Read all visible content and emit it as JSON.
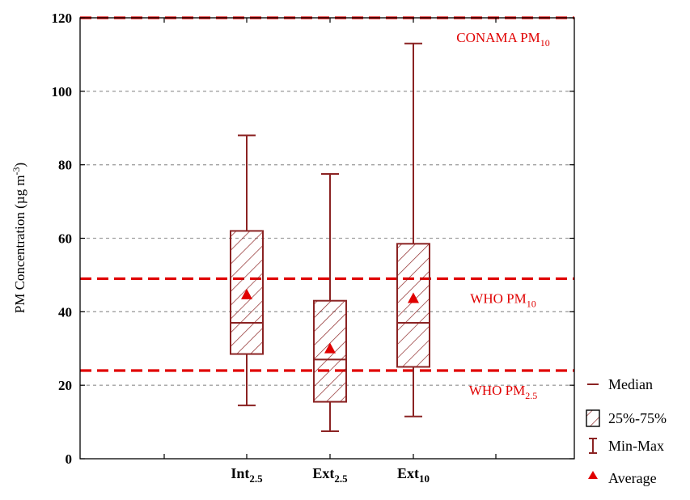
{
  "chart_data": {
    "type": "box",
    "ylabel": "PM Concentration (µg m",
    "ylabel_sup": "-3",
    "ylabel_end": ")",
    "ylim": [
      0,
      120
    ],
    "yticks": [
      0,
      20,
      40,
      60,
      80,
      100,
      120
    ],
    "grid": "horizontal dashed",
    "categories": [
      {
        "base": "Int",
        "sub": "2.5"
      },
      {
        "base": "Ext",
        "sub": "2.5"
      },
      {
        "base": "Ext",
        "sub": "10"
      }
    ],
    "boxes": [
      {
        "min": 14.5,
        "q1": 28.5,
        "median": 37,
        "q3": 62,
        "max": 88,
        "average": 44.5
      },
      {
        "min": 7.5,
        "q1": 15.5,
        "median": 27,
        "q3": 43,
        "max": 77.5,
        "average": 29.8
      },
      {
        "min": 11.5,
        "q1": 25,
        "median": 37,
        "q3": 58.5,
        "max": 113,
        "average": 43.5
      }
    ],
    "reference_lines": [
      {
        "base": "CONAMA PM",
        "sub": "10",
        "value": 120
      },
      {
        "base": "WHO PM",
        "sub": "10",
        "value": 49
      },
      {
        "base": "WHO PM",
        "sub": "2.5",
        "value": 24
      }
    ],
    "legend": {
      "position": "right-bottom",
      "items": [
        {
          "symbol": "median",
          "label": "Median"
        },
        {
          "symbol": "box",
          "label": "25%-75%"
        },
        {
          "symbol": "whisker",
          "label": "Min-Max"
        },
        {
          "symbol": "triangle",
          "label": "Average"
        }
      ]
    },
    "colors": {
      "box": "#8b2323",
      "reference": "#e00000",
      "average": "#e00000",
      "grid": "#a0a0a0"
    }
  }
}
